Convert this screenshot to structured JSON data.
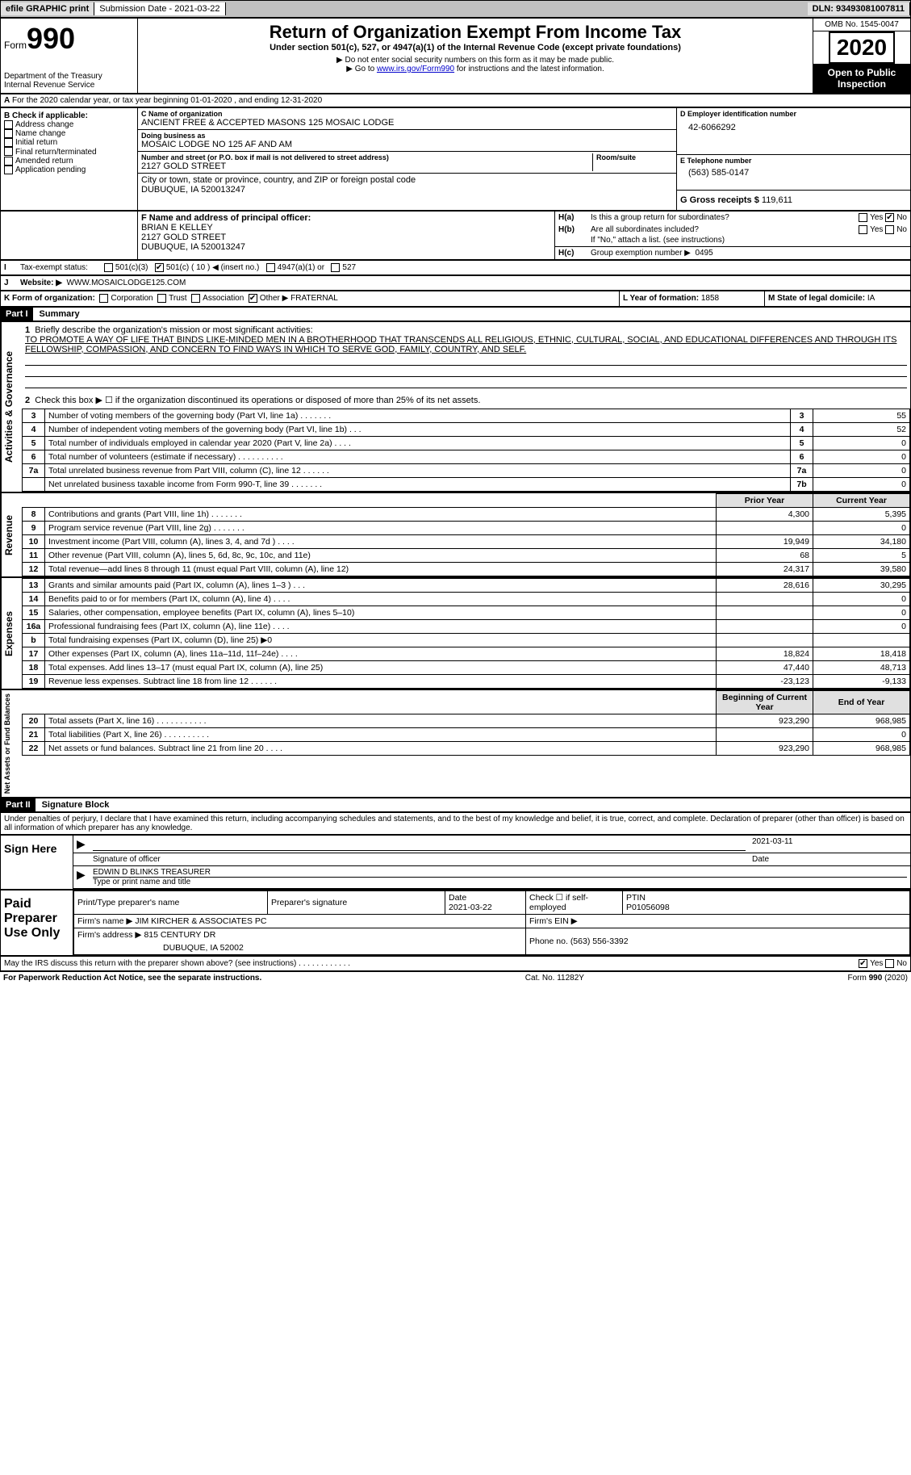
{
  "topbar": {
    "efile": "efile GRAPHIC print",
    "sub_label": "Submission Date - 2021-03-22",
    "dln": "DLN: 93493081007811"
  },
  "header": {
    "form_label": "Form",
    "form_num": "990",
    "dept": "Department of the Treasury\nInternal Revenue Service",
    "title": "Return of Organization Exempt From Income Tax",
    "subtitle": "Under section 501(c), 527, or 4947(a)(1) of the Internal Revenue Code (except private foundations)",
    "note1": "▶ Do not enter social security numbers on this form as it may be made public.",
    "note2_pre": "▶ Go to ",
    "note2_link": "www.irs.gov/Form990",
    "note2_post": " for instructions and the latest information.",
    "omb": "OMB No. 1545-0047",
    "year": "2020",
    "open": "Open to Public Inspection"
  },
  "lineA": "For the 2020 calendar year, or tax year beginning 01-01-2020    , and ending 12-31-2020",
  "B": {
    "label": "B Check if applicable:",
    "items": [
      "Address change",
      "Name change",
      "Initial return",
      "Final return/terminated",
      "Amended return",
      "Application pending"
    ]
  },
  "C": {
    "name_lbl": "C Name of organization",
    "name": "ANCIENT FREE & ACCEPTED MASONS 125 MOSAIC LODGE",
    "dba_lbl": "Doing business as",
    "dba": "MOSAIC LODGE NO 125 AF AND AM",
    "street_lbl": "Number and street (or P.O. box if mail is not delivered to street address)",
    "room_lbl": "Room/suite",
    "street": "2127 GOLD STREET",
    "city_lbl": "City or town, state or province, country, and ZIP or foreign postal code",
    "city": "DUBUQUE, IA  520013247"
  },
  "D": {
    "lbl": "D Employer identification number",
    "val": "42-6066292"
  },
  "E": {
    "lbl": "E Telephone number",
    "val": "(563) 585-0147"
  },
  "G": {
    "lbl": "G Gross receipts $",
    "val": "119,611"
  },
  "F": {
    "lbl": "F Name and address of principal officer:",
    "name": "BRIAN E KELLEY",
    "street": "2127 GOLD STREET",
    "city": "DUBUQUE, IA  520013247"
  },
  "H": {
    "a": "Is this a group return for subordinates?",
    "b": "Are all subordinates included?",
    "b_note": "If \"No,\" attach a list. (see instructions)",
    "c_lbl": "Group exemption number ▶",
    "c_val": "0495"
  },
  "I": {
    "lbl": "Tax-exempt status:",
    "insert": "◀ (insert no.)"
  },
  "J": {
    "lbl": "Website: ▶",
    "val": "WWW.MOSAICLODGE125.COM"
  },
  "K": {
    "lbl": "K Form of organization:",
    "other": "Other ▶",
    "other_val": "FRATERNAL"
  },
  "L": {
    "lbl": "L Year of formation:",
    "val": "1858"
  },
  "M": {
    "lbl": "M State of legal domicile:",
    "val": "IA"
  },
  "part1": {
    "hdr": "Part I",
    "title": "Summary",
    "q1_lbl": "Briefly describe the organization's mission or most significant activities:",
    "q1_txt": "TO PROMOTE A WAY OF LIFE THAT BINDS LIKE-MINDED MEN IN A BROTHERHOOD THAT TRANSCENDS ALL RELIGIOUS, ETHNIC, CULTURAL, SOCIAL, AND EDUCATIONAL DIFFERENCES AND THROUGH ITS FELLOWSHIP, COMPASSION, AND CONCERN TO FIND WAYS IN WHICH TO SERVE GOD, FAMILY, COUNTRY, AND SELF.",
    "q2": "Check this box ▶ ☐  if the organization discontinued its operations or disposed of more than 25% of its net assets.",
    "gov_rows": [
      {
        "n": "3",
        "t": "Number of voting members of the governing body (Part VI, line 1a)  .  .  .  .  .  .  .",
        "r": "3",
        "v": "55"
      },
      {
        "n": "4",
        "t": "Number of independent voting members of the governing body (Part VI, line 1b)  .  .  .",
        "r": "4",
        "v": "52"
      },
      {
        "n": "5",
        "t": "Total number of individuals employed in calendar year 2020 (Part V, line 2a)  .  .  .  .",
        "r": "5",
        "v": "0"
      },
      {
        "n": "6",
        "t": "Total number of volunteers (estimate if necessary)  .  .  .  .  .  .  .  .  .  .",
        "r": "6",
        "v": "0"
      },
      {
        "n": "7a",
        "t": "Total unrelated business revenue from Part VIII, column (C), line 12  .  .  .  .  .  .",
        "r": "7a",
        "v": "0"
      },
      {
        "n": "",
        "t": "Net unrelated business taxable income from Form 990-T, line 39  .  .  .  .  .  .  .",
        "r": "7b",
        "v": "0"
      }
    ],
    "col_prior": "Prior Year",
    "col_curr": "Current Year",
    "rev_rows": [
      {
        "n": "8",
        "t": "Contributions and grants (Part VIII, line 1h)  .  .  .  .  .  .  .",
        "p": "4,300",
        "c": "5,395"
      },
      {
        "n": "9",
        "t": "Program service revenue (Part VIII, line 2g)  .  .  .  .  .  .  .",
        "p": "",
        "c": "0"
      },
      {
        "n": "10",
        "t": "Investment income (Part VIII, column (A), lines 3, 4, and 7d )  .  .  .  .",
        "p": "19,949",
        "c": "34,180"
      },
      {
        "n": "11",
        "t": "Other revenue (Part VIII, column (A), lines 5, 6d, 8c, 9c, 10c, and 11e)",
        "p": "68",
        "c": "5"
      },
      {
        "n": "12",
        "t": "Total revenue—add lines 8 through 11 (must equal Part VIII, column (A), line 12)",
        "p": "24,317",
        "c": "39,580"
      }
    ],
    "exp_rows": [
      {
        "n": "13",
        "t": "Grants and similar amounts paid (Part IX, column (A), lines 1–3 )  .  .  .",
        "p": "28,616",
        "c": "30,295"
      },
      {
        "n": "14",
        "t": "Benefits paid to or for members (Part IX, column (A), line 4)  .  .  .  .",
        "p": "",
        "c": "0"
      },
      {
        "n": "15",
        "t": "Salaries, other compensation, employee benefits (Part IX, column (A), lines 5–10)",
        "p": "",
        "c": "0"
      },
      {
        "n": "16a",
        "t": "Professional fundraising fees (Part IX, column (A), line 11e)  .  .  .  .",
        "p": "",
        "c": "0"
      },
      {
        "n": "b",
        "t": "Total fundraising expenses (Part IX, column (D), line 25) ▶0",
        "p": "",
        "c": "",
        "shaded": true
      },
      {
        "n": "17",
        "t": "Other expenses (Part IX, column (A), lines 11a–11d, 11f–24e)  .  .  .  .",
        "p": "18,824",
        "c": "18,418"
      },
      {
        "n": "18",
        "t": "Total expenses. Add lines 13–17 (must equal Part IX, column (A), line 25)",
        "p": "47,440",
        "c": "48,713"
      },
      {
        "n": "19",
        "t": "Revenue less expenses. Subtract line 18 from line 12  .  .  .  .  .  .",
        "p": "-23,123",
        "c": "-9,133"
      }
    ],
    "col_beg": "Beginning of Current Year",
    "col_end": "End of Year",
    "bal_rows": [
      {
        "n": "20",
        "t": "Total assets (Part X, line 16)  .  .  .  .  .  .  .  .  .  .  .",
        "p": "923,290",
        "c": "968,985"
      },
      {
        "n": "21",
        "t": "Total liabilities (Part X, line 26)  .  .  .  .  .  .  .  .  .  .",
        "p": "",
        "c": "0"
      },
      {
        "n": "22",
        "t": "Net assets or fund balances. Subtract line 21 from line 20  .  .  .  .",
        "p": "923,290",
        "c": "968,985"
      }
    ]
  },
  "part2": {
    "hdr": "Part II",
    "title": "Signature Block",
    "decl": "Under penalties of perjury, I declare that I have examined this return, including accompanying schedules and statements, and to the best of my knowledge and belief, it is true, correct, and complete. Declaration of preparer (other than officer) is based on all information of which preparer has any knowledge."
  },
  "sign": {
    "here": "Sign Here",
    "sig_lbl": "Signature of officer",
    "date_lbl": "Date",
    "date": "2021-03-11",
    "name": "EDWIN D BLINKS  TREASURER",
    "name_lbl": "Type or print name and title"
  },
  "preparer": {
    "lbl": "Paid Preparer Use Only",
    "print_lbl": "Print/Type preparer's name",
    "sig_lbl": "Preparer's signature",
    "date_lbl": "Date",
    "date": "2021-03-22",
    "check_lbl": "Check ☐ if self-employed",
    "ptin_lbl": "PTIN",
    "ptin": "P01056098",
    "firm_name_lbl": "Firm's name    ▶",
    "firm_name": "JIM KIRCHER & ASSOCIATES PC",
    "firm_ein_lbl": "Firm's EIN ▶",
    "firm_addr_lbl": "Firm's address ▶",
    "firm_addr1": "815 CENTURY DR",
    "firm_addr2": "DUBUQUE, IA  52002",
    "phone_lbl": "Phone no.",
    "phone": "(563) 556-3392"
  },
  "discuss": "May the IRS discuss this return with the preparer shown above? (see instructions)  .  .  .  .  .  .  .  .  .  .  .  .",
  "footer": {
    "left": "For Paperwork Reduction Act Notice, see the separate instructions.",
    "mid": "Cat. No. 11282Y",
    "right": "Form 990 (2020)"
  },
  "labels": {
    "yes": "Yes",
    "no": "No",
    "b": "b",
    "Ha": "H(a)",
    "Hb": "H(b)",
    "Hc": "H(c)",
    "c501c3": "501(c)(3)",
    "c501c": "501(c) ( 10 )",
    "c4947": "4947(a)(1) or",
    "c527": "527",
    "corp": "Corporation",
    "trust": "Trust",
    "assoc": "Association",
    "A": "A"
  },
  "vert": {
    "gov": "Activities & Governance",
    "rev": "Revenue",
    "exp": "Expenses",
    "bal": "Net Assets or Fund Balances"
  }
}
